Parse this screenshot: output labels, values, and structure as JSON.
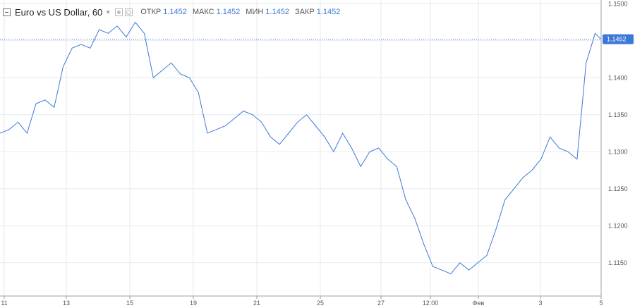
{
  "header": {
    "title": "Euro vs US Dollar, 60",
    "open_label": "ОТКР",
    "open_value": "1.1452",
    "high_label": "МАКС",
    "high_value": "1.1452",
    "low_label": "МИН",
    "low_value": "1.1452",
    "close_label": "ЗАКР",
    "close_value": "1.1452"
  },
  "colors": {
    "line": "#3c78d8",
    "grid": "#e6eaef",
    "price_badge": "#3c78d8",
    "axis_text": "#555555"
  },
  "chart_data": {
    "type": "line",
    "title": "Euro vs US Dollar, 60",
    "xlabel": "",
    "ylabel": "",
    "ylim": [
      1.1105,
      1.1505
    ],
    "grid": true,
    "current_price": 1.1452,
    "y_ticks": [
      "1.1500",
      "1.1450",
      "1.1400",
      "1.1350",
      "1.1300",
      "1.1250",
      "1.1200",
      "1.1150"
    ],
    "x_ticks": [
      "11",
      "13",
      "15",
      "19",
      "21",
      "25",
      "27",
      "12:00",
      "Фев",
      "3",
      "5"
    ],
    "series": [
      {
        "x": [
          0.0,
          0.3,
          0.6,
          0.9,
          1.2,
          1.5,
          1.8,
          2.1,
          2.4,
          2.7,
          3.0,
          3.3,
          3.6,
          3.9,
          4.2,
          4.5,
          4.8,
          5.1,
          5.4,
          5.7,
          6.0,
          6.3,
          6.6,
          6.9,
          7.2,
          7.5,
          7.8,
          8.1,
          8.4,
          8.7,
          9.0,
          9.3,
          9.6,
          9.9,
          10.2,
          10.5,
          10.8,
          11.1,
          11.4,
          11.7,
          12.0,
          12.3,
          12.6,
          12.9,
          13.2,
          13.5,
          13.8,
          14.1,
          14.4,
          14.7,
          15.0,
          15.3,
          15.6,
          15.9,
          16.2,
          16.5,
          16.8,
          17.1,
          17.4,
          17.7,
          18.0,
          18.3,
          18.6,
          18.9,
          19.2,
          19.5,
          19.8,
          20.0
        ],
        "y": [
          1.1325,
          1.133,
          1.134,
          1.1325,
          1.1365,
          1.137,
          1.136,
          1.1415,
          1.144,
          1.1445,
          1.144,
          1.1465,
          1.146,
          1.147,
          1.1455,
          1.1475,
          1.146,
          1.14,
          1.141,
          1.142,
          1.1405,
          1.14,
          1.138,
          1.1325,
          1.133,
          1.1335,
          1.1345,
          1.1355,
          1.135,
          1.134,
          1.132,
          1.131,
          1.1325,
          1.134,
          1.135,
          1.1335,
          1.132,
          1.13,
          1.1325,
          1.1305,
          1.128,
          1.13,
          1.1305,
          1.129,
          1.128,
          1.1235,
          1.121,
          1.1175,
          1.1145,
          1.114,
          1.1135,
          1.115,
          1.114,
          1.115,
          1.116,
          1.1195,
          1.1235,
          1.125,
          1.1265,
          1.1275,
          1.129,
          1.132,
          1.1305,
          1.13,
          1.129,
          1.142,
          1.146,
          1.1452
        ]
      }
    ]
  }
}
